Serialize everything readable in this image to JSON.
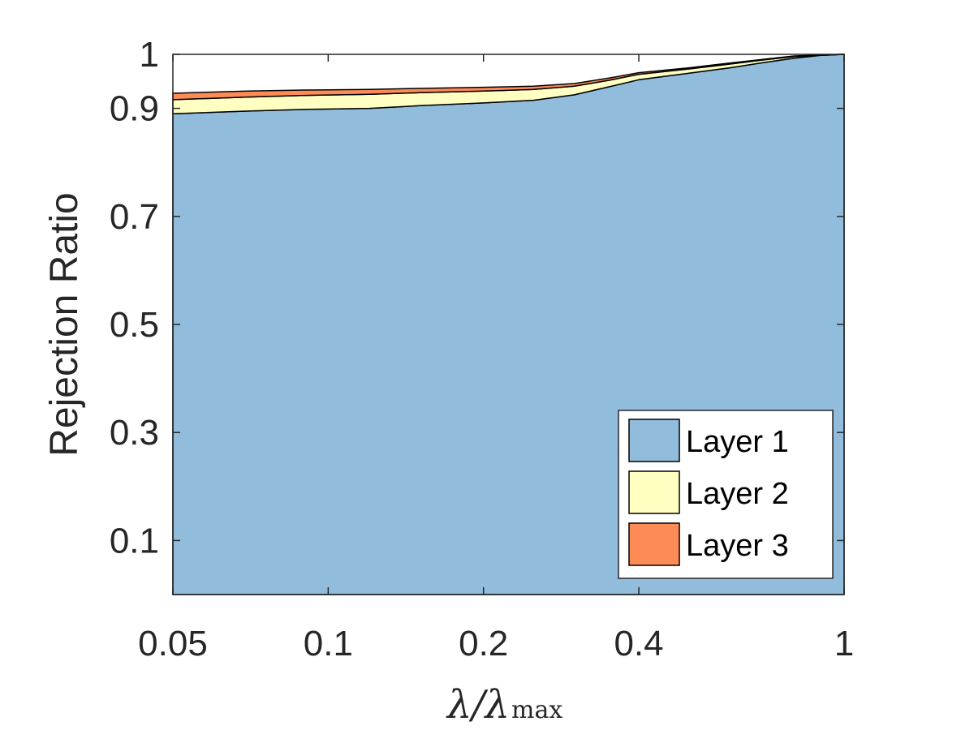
{
  "chart_data": {
    "type": "area",
    "stacked": true,
    "x_scale": "log",
    "xlabel": {
      "main": "λ/λ",
      "subscript": "max"
    },
    "ylabel": "Rejection Ratio",
    "xlim": [
      0.05,
      1
    ],
    "ylim": [
      0,
      1
    ],
    "x_ticks": [
      0.05,
      0.1,
      0.2,
      0.4,
      1
    ],
    "x_tick_labels": [
      "0.05",
      "0.1",
      "0.2",
      "0.4",
      "1"
    ],
    "y_ticks": [
      0.1,
      0.3,
      0.5,
      0.7,
      0.9,
      1
    ],
    "y_tick_labels": [
      "0.1",
      "0.3",
      "0.5",
      "0.7",
      "0.9",
      "1"
    ],
    "grid": false,
    "legend_position": "bottom-right",
    "x": [
      0.05,
      0.07,
      0.09,
      0.12,
      0.15,
      0.2,
      0.25,
      0.3,
      0.35,
      0.4,
      0.5,
      0.6,
      0.7,
      0.8,
      0.9,
      1.0
    ],
    "series": [
      {
        "name": "Layer 1",
        "color": "#91bcdb",
        "values": [
          0.89,
          0.895,
          0.898,
          0.9,
          0.905,
          0.91,
          0.915,
          0.925,
          0.94,
          0.953,
          0.965,
          0.975,
          0.985,
          0.993,
          0.998,
          1.0
        ]
      },
      {
        "name": "Layer 2",
        "color": "#ffffc2",
        "values": [
          0.026,
          0.026,
          0.026,
          0.026,
          0.024,
          0.022,
          0.02,
          0.016,
          0.012,
          0.01,
          0.008,
          0.007,
          0.005,
          0.003,
          0.001,
          0.0
        ]
      },
      {
        "name": "Layer 3",
        "color": "#fc8b56",
        "values": [
          0.012,
          0.011,
          0.01,
          0.009,
          0.008,
          0.007,
          0.006,
          0.005,
          0.004,
          0.003,
          0.002,
          0.002,
          0.001,
          0.001,
          0.0,
          0.0
        ]
      }
    ]
  }
}
